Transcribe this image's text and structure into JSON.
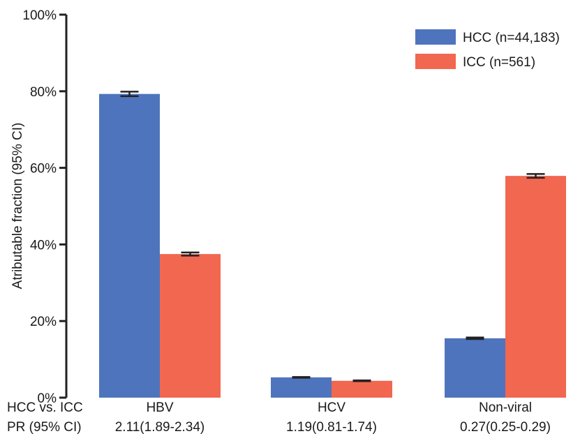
{
  "chart_data": {
    "type": "bar",
    "ylabel": "Atributable fraction (95% CI)",
    "ylim": [
      0,
      100
    ],
    "yticks": [
      "0%",
      "20%",
      "40%",
      "60%",
      "80%",
      "100%"
    ],
    "categories": [
      "HBV",
      "HCV",
      "Non-viral"
    ],
    "series": [
      {
        "name": "HCC (n=44,183)",
        "color": "#4f74be",
        "values": [
          79.3,
          5.3,
          15.5
        ],
        "ci_low": [
          78.7,
          5.2,
          15.3
        ],
        "ci_high": [
          79.9,
          5.4,
          15.7
        ]
      },
      {
        "name": "ICC (n=561)",
        "color": "#f26750",
        "values": [
          37.5,
          4.4,
          57.9
        ],
        "ci_low": [
          37.1,
          4.3,
          57.4
        ],
        "ci_high": [
          37.9,
          4.5,
          58.4
        ]
      }
    ],
    "row_labels": [
      "HCC vs. ICC",
      "PR (95% CI)"
    ],
    "pr_values": [
      "2.11(1.89-2.34)",
      "1.19(0.81-1.74)",
      "0.27(0.25-0.29)"
    ],
    "legend": "top-right",
    "grid": false
  }
}
